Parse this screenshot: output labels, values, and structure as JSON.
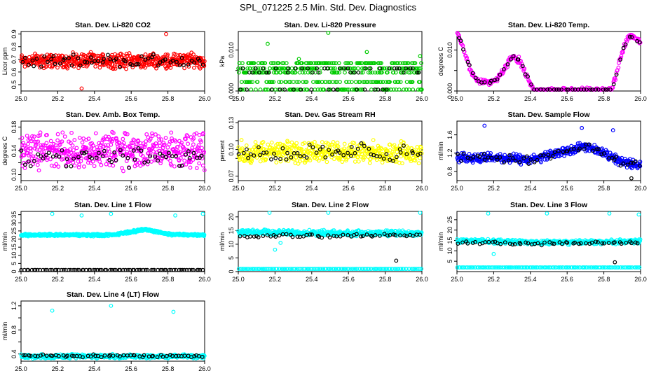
{
  "figure_title": "SPL_071225  2.5 Min. Std. Dev. Diagnostics",
  "chart_data": [
    {
      "type": "scatter",
      "title": "Stan. Dev. Li-820 CO2",
      "ylabel": "Licor ppm",
      "xlabel": "",
      "xlim": [
        25.0,
        26.0
      ],
      "ylim": [
        0.45,
        0.92
      ],
      "yticks": [
        0.5,
        0.6,
        0.7,
        0.8,
        0.9
      ],
      "ytick_labels": [
        "0.5",
        "0.6",
        "0.7",
        "0.8",
        "0.9"
      ],
      "xticks": [
        25.0,
        25.2,
        25.4,
        25.6,
        25.8,
        26.0
      ],
      "xtick_labels": [
        "25.0",
        "25.2",
        "25.4",
        "25.6",
        "25.8",
        "26.0"
      ],
      "series": [
        {
          "name": "primary",
          "color": "#ff0000",
          "model": {
            "kind": "noise",
            "base": 0.69,
            "amp": 0.07,
            "n": 520
          },
          "outliers": [
            [
              25.33,
              0.47
            ],
            [
              25.79,
              0.9
            ]
          ]
        },
        {
          "name": "reference",
          "color": "#000000",
          "model": {
            "kind": "noise",
            "base": 0.69,
            "amp": 0.06,
            "n": 60
          }
        }
      ]
    },
    {
      "type": "scatter",
      "title": "Stan. Dev. Li-820 Pressure",
      "ylabel": "kPa",
      "xlabel": "",
      "xlim": [
        25.0,
        26.0
      ],
      "ylim": [
        0.0,
        0.0145
      ],
      "yticks": [
        0.0,
        0.005,
        0.01
      ],
      "ytick_labels": [
        "0.000",
        "",
        "0.010"
      ],
      "xticks": [
        25.0,
        25.2,
        25.4,
        25.6,
        25.8,
        26.0
      ],
      "xtick_labels": [
        "25.0",
        "25.2",
        "25.4",
        "25.6",
        "25.8",
        "26.0"
      ],
      "series": [
        {
          "name": "primary",
          "color": "#00cc00",
          "model": {
            "kind": "levels",
            "levels": [
              0.0,
              0.0022,
              0.0045,
              0.0055,
              0.0068
            ],
            "n": 460
          },
          "outliers": [
            [
              25.49,
              0.0145
            ],
            [
              25.16,
              0.0115
            ],
            [
              25.99,
              0.0085
            ],
            [
              25.7,
              0.0095
            ],
            [
              25.33,
              0.0078
            ]
          ]
        },
        {
          "name": "reference",
          "color": "#000000",
          "model": {
            "kind": "levels",
            "levels": [
              0.0,
              0.0045,
              0.0055
            ],
            "n": 55
          }
        }
      ]
    },
    {
      "type": "scatter",
      "title": "Stan. Dev. Li-820 Temp.",
      "ylabel": "degrees C",
      "xlabel": "",
      "xlim": [
        25.0,
        26.0
      ],
      "ylim": [
        0.0,
        0.0145
      ],
      "yticks": [
        0.0,
        0.005,
        0.01
      ],
      "ytick_labels": [
        "0.000",
        "",
        "0.010"
      ],
      "xticks": [
        25.0,
        25.2,
        25.4,
        25.6,
        25.8,
        26.0
      ],
      "xtick_labels": [
        "25.0",
        "25.2",
        "25.4",
        "25.6",
        "25.8",
        "26.0"
      ],
      "series": [
        {
          "name": "primary",
          "color": "#ff00ff",
          "model": {
            "kind": "curve",
            "pts": [
              [
                25.0,
                0.0145
              ],
              [
                25.04,
                0.0095
              ],
              [
                25.08,
                0.0045
              ],
              [
                25.12,
                0.0022
              ],
              [
                25.18,
                0.0022
              ],
              [
                25.22,
                0.0028
              ],
              [
                25.26,
                0.0055
              ],
              [
                25.3,
                0.0085
              ],
              [
                25.34,
                0.0075
              ],
              [
                25.38,
                0.0035
              ],
              [
                25.42,
                0.0
              ],
              [
                25.84,
                0.0
              ],
              [
                25.87,
                0.0045
              ],
              [
                25.9,
                0.0095
              ],
              [
                25.93,
                0.013
              ],
              [
                25.96,
                0.0135
              ],
              [
                26.0,
                0.0115
              ]
            ],
            "n": 300,
            "spread": 0.0009
          }
        },
        {
          "name": "reference",
          "color": "#000000",
          "model": {
            "kind": "curve",
            "pts": [
              [
                25.0,
                0.0145
              ],
              [
                25.04,
                0.0095
              ],
              [
                25.08,
                0.0045
              ],
              [
                25.12,
                0.0022
              ],
              [
                25.18,
                0.0022
              ],
              [
                25.22,
                0.0028
              ],
              [
                25.26,
                0.0055
              ],
              [
                25.3,
                0.0085
              ],
              [
                25.34,
                0.0075
              ],
              [
                25.38,
                0.0035
              ],
              [
                25.42,
                0.0
              ],
              [
                25.84,
                0.0
              ],
              [
                25.87,
                0.0045
              ],
              [
                25.9,
                0.0095
              ],
              [
                25.93,
                0.013
              ],
              [
                25.96,
                0.0135
              ],
              [
                26.0,
                0.0115
              ]
            ],
            "n": 60,
            "spread": 0.0006
          }
        }
      ]
    },
    {
      "type": "scatter",
      "title": "Stan. Dev. Amb. Box Temp.",
      "ylabel": "degrees C",
      "xlabel": "",
      "xlim": [
        25.0,
        26.0
      ],
      "ylim": [
        0.09,
        0.19
      ],
      "yticks": [
        0.1,
        0.12,
        0.14,
        0.16,
        0.18
      ],
      "ytick_labels": [
        "0.10",
        "",
        "0.14",
        "",
        "0.18"
      ],
      "xticks": [
        25.0,
        25.2,
        25.4,
        25.6,
        25.8,
        26.0
      ],
      "xtick_labels": [
        "25.0",
        "25.2",
        "25.4",
        "25.6",
        "25.8",
        "26.0"
      ],
      "series": [
        {
          "name": "primary",
          "color": "#ff00ff",
          "model": {
            "kind": "noise",
            "base": 0.14,
            "amp": 0.035,
            "n": 480
          }
        },
        {
          "name": "reference",
          "color": "#000000",
          "model": {
            "kind": "noise",
            "base": 0.13,
            "amp": 0.02,
            "n": 60
          }
        }
      ]
    },
    {
      "type": "scatter",
      "title": "Stan. Dev. Gas Stream RH",
      "ylabel": "percent",
      "xlabel": "",
      "xlim": [
        25.0,
        26.0
      ],
      "ylim": [
        0.065,
        0.132
      ],
      "yticks": [
        0.07,
        0.09,
        0.1,
        0.11,
        0.13
      ],
      "ytick_labels": [
        "0.07",
        "",
        "0.10",
        "",
        "0.13"
      ],
      "xticks": [
        25.0,
        25.2,
        25.4,
        25.6,
        25.8,
        26.0
      ],
      "xtick_labels": [
        "25.0",
        "25.2",
        "25.4",
        "25.6",
        "25.8",
        "26.0"
      ],
      "series": [
        {
          "name": "primary",
          "color": "#ffff00",
          "model": {
            "kind": "noise",
            "base": 0.097,
            "amp": 0.014,
            "n": 460
          }
        },
        {
          "name": "reference",
          "color": "#000000",
          "model": {
            "kind": "noise",
            "base": 0.096,
            "amp": 0.012,
            "n": 60
          }
        }
      ]
    },
    {
      "type": "scatter",
      "title": "Stan. Dev. Sample Flow",
      "ylabel": "ml/min",
      "xlabel": "",
      "xlim": [
        25.0,
        26.0
      ],
      "ylim": [
        0.6,
        1.9
      ],
      "yticks": [
        0.8,
        1.2,
        1.6
      ],
      "ytick_labels": [
        "0.8",
        "1.2",
        "1.6"
      ],
      "xticks": [
        25.0,
        25.2,
        25.4,
        25.6,
        25.8,
        26.0
      ],
      "xtick_labels": [
        "25.0",
        "25.2",
        "25.4",
        "25.6",
        "25.8",
        "26.0"
      ],
      "series": [
        {
          "name": "primary",
          "color": "#0000ff",
          "model": {
            "kind": "curve",
            "pts": [
              [
                25.0,
                1.1
              ],
              [
                25.2,
                1.1
              ],
              [
                25.4,
                1.05
              ],
              [
                25.55,
                1.2
              ],
              [
                25.7,
                1.35
              ],
              [
                25.8,
                1.2
              ],
              [
                25.9,
                1.0
              ],
              [
                26.0,
                0.95
              ]
            ],
            "n": 440,
            "spread": 0.12
          },
          "outliers": [
            [
              25.15,
              1.8
            ],
            [
              25.68,
              1.75
            ],
            [
              25.85,
              1.7
            ]
          ]
        },
        {
          "name": "reference",
          "color": "#000000",
          "model": {
            "kind": "curve",
            "pts": [
              [
                25.0,
                1.1
              ],
              [
                25.2,
                1.1
              ],
              [
                25.4,
                1.05
              ],
              [
                25.55,
                1.2
              ],
              [
                25.7,
                1.35
              ],
              [
                25.8,
                1.2
              ],
              [
                25.9,
                1.0
              ],
              [
                26.0,
                0.95
              ]
            ],
            "n": 60,
            "spread": 0.1
          },
          "outliers": [
            [
              25.95,
              0.65
            ]
          ]
        }
      ]
    },
    {
      "type": "scatter",
      "title": "Stan. Dev. Line 1 Flow",
      "ylabel": "ml/min",
      "xlabel": "",
      "xlim": [
        25.0,
        26.0
      ],
      "ylim": [
        0,
        37
      ],
      "yticks": [
        0,
        5,
        10,
        15,
        20,
        25,
        30,
        35
      ],
      "ytick_labels": [
        "0",
        "5",
        "10",
        "15",
        "20",
        "25",
        "30",
        "35"
      ],
      "xticks": [
        25.0,
        25.2,
        25.4,
        25.6,
        25.8,
        26.0
      ],
      "xtick_labels": [
        "25.0",
        "25.2",
        "25.4",
        "25.6",
        "25.8",
        "26.0"
      ],
      "series": [
        {
          "name": "primary",
          "color": "#00ffff",
          "model": {
            "kind": "curve",
            "pts": [
              [
                25.0,
                22.5
              ],
              [
                25.5,
                22.5
              ],
              [
                25.68,
                26
              ],
              [
                25.8,
                23
              ],
              [
                26.0,
                22.5
              ]
            ],
            "n": 500,
            "spread": 0.9
          },
          "outliers": [
            [
              25.17,
              35.5
            ],
            [
              25.33,
              34.5
            ],
            [
              25.49,
              35.5
            ],
            [
              25.84,
              34.5
            ],
            [
              25.99,
              35.5
            ]
          ]
        },
        {
          "name": "reference",
          "color": "#000000",
          "model": {
            "kind": "levels",
            "levels": [
              1.0
            ],
            "n": 80
          }
        }
      ]
    },
    {
      "type": "scatter",
      "title": "Stan. Dev. Line 2 Flow",
      "ylabel": "ml/min",
      "xlabel": "",
      "xlim": [
        25.0,
        26.0
      ],
      "ylim": [
        0,
        22
      ],
      "yticks": [
        0,
        5,
        10,
        15,
        20
      ],
      "ytick_labels": [
        "0",
        "5",
        "10",
        "15",
        "20"
      ],
      "xticks": [
        25.0,
        25.2,
        25.4,
        25.6,
        25.8,
        26.0
      ],
      "xtick_labels": [
        "25.0",
        "25.2",
        "25.4",
        "25.6",
        "25.8",
        "26.0"
      ],
      "series": [
        {
          "name": "primary",
          "color": "#00ffff",
          "model": {
            "kind": "curve",
            "pts": [
              [
                25.0,
                14.5
              ],
              [
                25.5,
                14
              ],
              [
                26.0,
                14
              ]
            ],
            "n": 420,
            "spread": 1.2
          },
          "outliers": [
            [
              25.17,
              21.5
            ],
            [
              25.49,
              21.5
            ],
            [
              25.99,
              21.5
            ],
            [
              25.2,
              8
            ],
            [
              25.23,
              10.5
            ]
          ]
        },
        {
          "name": "cyan-baseline",
          "color": "#00ffff",
          "model": {
            "kind": "levels",
            "levels": [
              1.0
            ],
            "n": 130
          }
        },
        {
          "name": "reference",
          "color": "#000000",
          "model": {
            "kind": "curve",
            "pts": [
              [
                25.0,
                13
              ],
              [
                25.5,
                13
              ],
              [
                26.0,
                13.5
              ]
            ],
            "n": 55,
            "spread": 0.8
          },
          "outliers": [
            [
              25.86,
              4
            ]
          ]
        }
      ]
    },
    {
      "type": "scatter",
      "title": "Stan. Dev. Line 3 Flow",
      "ylabel": "ml/min",
      "xlabel": "",
      "xlim": [
        25.0,
        26.0
      ],
      "ylim": [
        0,
        29
      ],
      "yticks": [
        5,
        10,
        15,
        20,
        25
      ],
      "ytick_labels": [
        "5",
        "10",
        "15",
        "20",
        "25"
      ],
      "xticks": [
        25.0,
        25.2,
        25.4,
        25.6,
        25.8,
        26.0
      ],
      "xtick_labels": [
        "25.0",
        "25.2",
        "25.4",
        "25.6",
        "25.8",
        "26.0"
      ],
      "series": [
        {
          "name": "primary",
          "color": "#00ffff",
          "model": {
            "kind": "curve",
            "pts": [
              [
                25.0,
                15
              ],
              [
                25.5,
                14
              ],
              [
                26.0,
                14.5
              ]
            ],
            "n": 420,
            "spread": 1.2
          },
          "outliers": [
            [
              25.17,
              28
            ],
            [
              25.49,
              28
            ],
            [
              25.83,
              28
            ],
            [
              25.99,
              27.5
            ],
            [
              25.2,
              8.5
            ]
          ]
        },
        {
          "name": "cyan-baseline",
          "color": "#00ffff",
          "model": {
            "kind": "levels",
            "levels": [
              2.0
            ],
            "n": 130
          }
        },
        {
          "name": "reference",
          "color": "#000000",
          "model": {
            "kind": "curve",
            "pts": [
              [
                25.0,
                14
              ],
              [
                25.5,
                13.5
              ],
              [
                26.0,
                14
              ]
            ],
            "n": 55,
            "spread": 0.9
          },
          "outliers": [
            [
              25.86,
              4.5
            ]
          ]
        }
      ]
    },
    {
      "type": "scatter",
      "title": "Stan. Dev. Line 4 (LT) Flow",
      "ylabel": "ml/min",
      "xlabel": "",
      "xlim": [
        25.0,
        26.0
      ],
      "ylim": [
        0.28,
        1.28
      ],
      "yticks": [
        0.4,
        0.6,
        0.8,
        1.0,
        1.2
      ],
      "ytick_labels": [
        "0.4",
        "",
        "0.8",
        "",
        "1.2"
      ],
      "xticks": [
        25.0,
        25.2,
        25.4,
        25.6,
        25.8,
        26.0
      ],
      "xtick_labels": [
        "25.0",
        "25.2",
        "25.4",
        "25.6",
        "25.8",
        "26.0"
      ],
      "series": [
        {
          "name": "primary",
          "color": "#00ffff",
          "model": {
            "kind": "noise",
            "base": 0.36,
            "amp": 0.04,
            "n": 460
          },
          "outliers": [
            [
              25.17,
              1.12
            ],
            [
              25.49,
              1.2
            ],
            [
              25.83,
              1.1
            ]
          ]
        },
        {
          "name": "reference",
          "color": "#000000",
          "model": {
            "kind": "noise",
            "base": 0.37,
            "amp": 0.03,
            "n": 60
          }
        }
      ]
    }
  ]
}
